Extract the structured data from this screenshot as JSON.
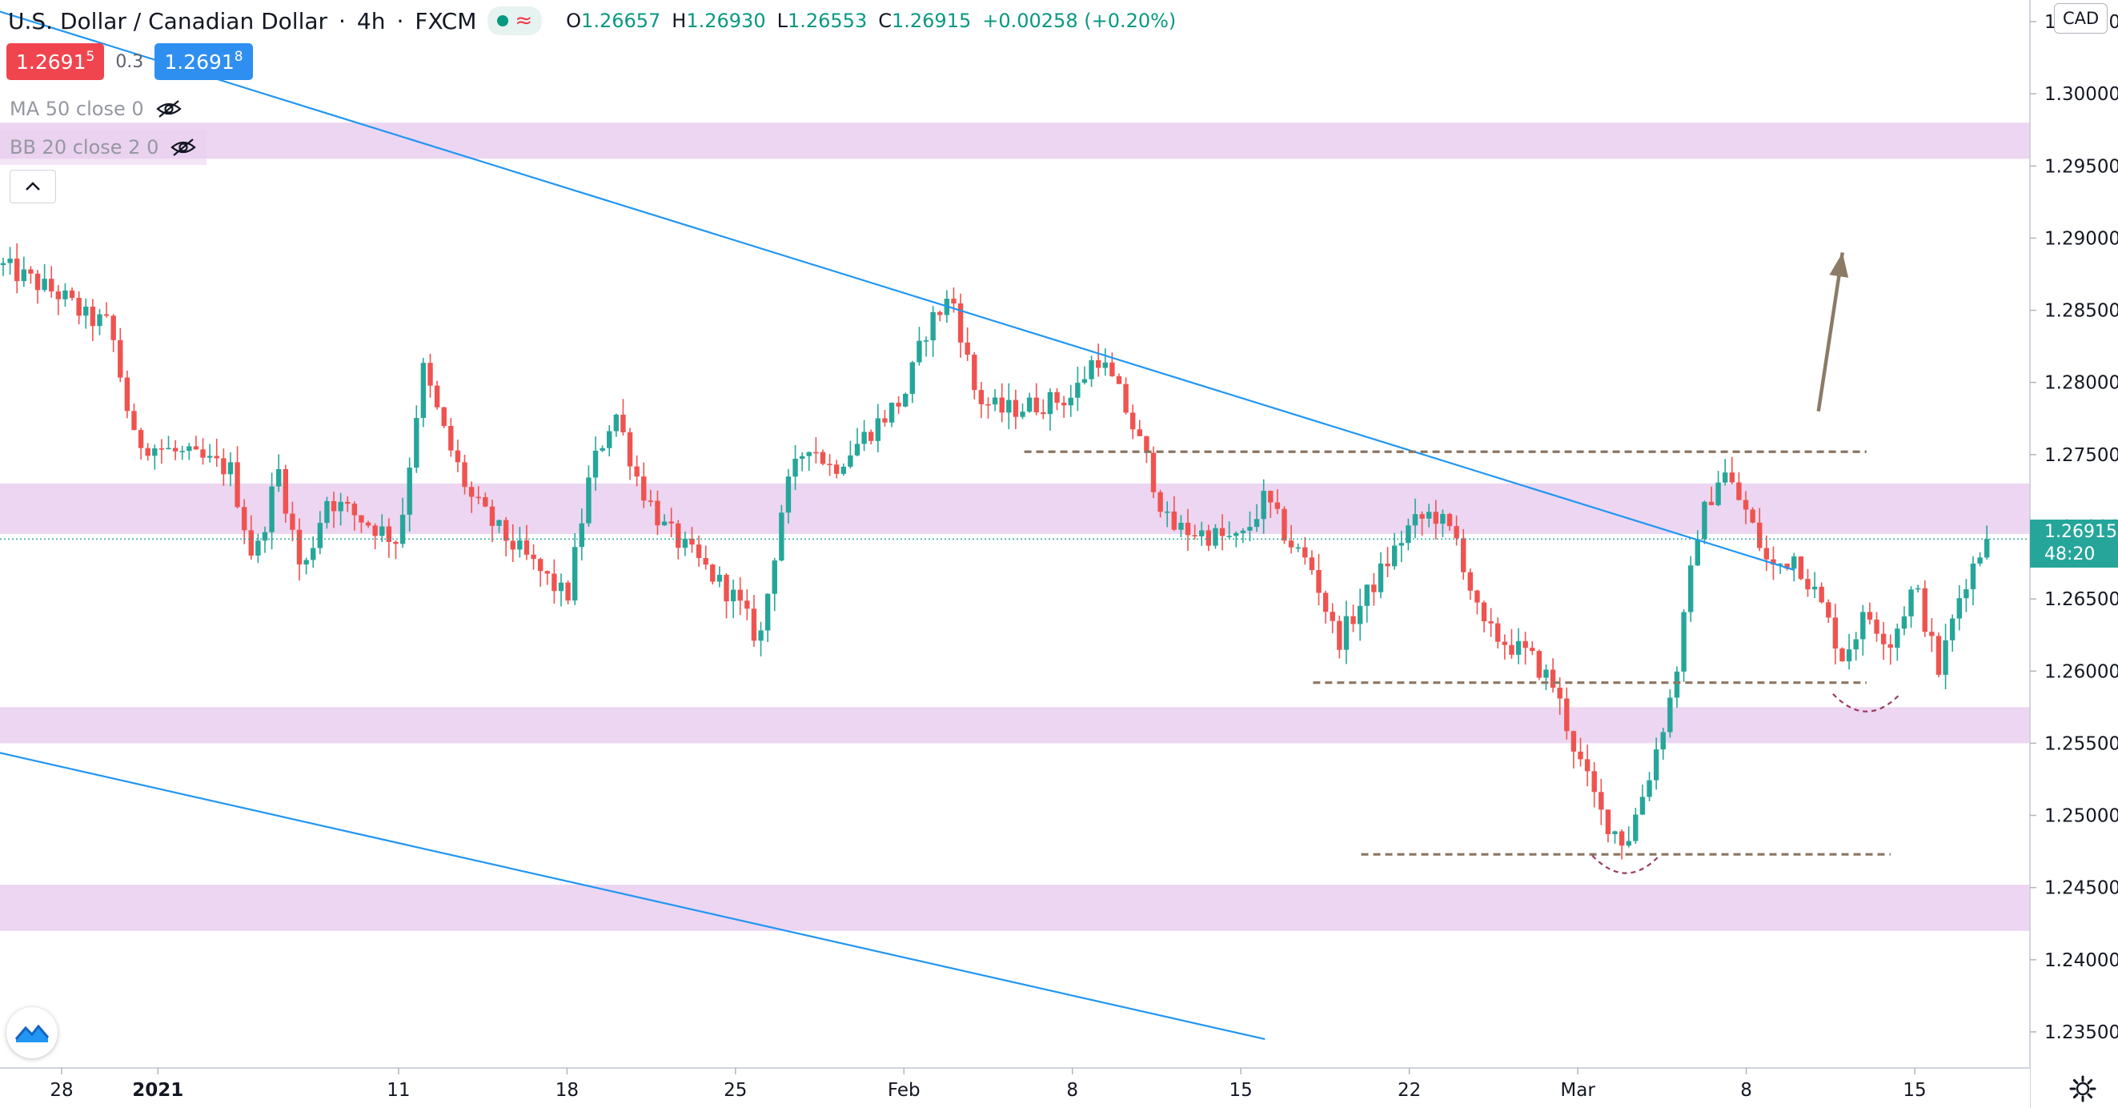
{
  "header": {
    "symbol_name": "U.S. Dollar / Canadian Dollar",
    "interval": "4h",
    "exchange": "FXCM",
    "wave_symbol": "≈",
    "ohlc": {
      "open_key": "O",
      "open": "1.26657",
      "high_key": "H",
      "high": "1.26930",
      "low_key": "L",
      "low": "1.26553",
      "close_key": "C",
      "close": "1.26915",
      "change": "+0.00258 (+0.20%)"
    }
  },
  "quote": {
    "sell_main": "1.2691",
    "sell_small": "5",
    "spread": "0.3",
    "buy_main": "1.2691",
    "buy_small": "8"
  },
  "indicators": [
    {
      "label": "MA 50 close 0"
    },
    {
      "label": "BB 20 close 2 0"
    }
  ],
  "currency_badge": "CAD",
  "last_price": {
    "value": "1.26915",
    "countdown": "48:20"
  },
  "icons": {
    "status": "market-open-dot-icon",
    "eye": "eye-crossed-icon",
    "collapse": "chevron-up-icon",
    "logo": "tradingview-logo-icon",
    "settings": "gear-icon"
  },
  "colors": {
    "up": "#26a69a",
    "down": "#ef5350",
    "trendline": "#2196f3",
    "level": "#8b7560",
    "zone": "#e6c8ec",
    "arrow": "#8b7b66"
  },
  "chart_data": {
    "type": "candlestick",
    "timeframe": "4h",
    "y_range": [
      1.2325,
      1.3065
    ],
    "y_ticks": [
      "1.30500",
      "1.30000",
      "1.29500",
      "1.29000",
      "1.28500",
      "1.28000",
      "1.27500",
      "1.27000",
      "1.26500",
      "1.26000",
      "1.25500",
      "1.25000",
      "1.24500",
      "1.24000",
      "1.23500"
    ],
    "x_ticks": [
      {
        "label": "28",
        "t": "2020-12-28"
      },
      {
        "label": "2021",
        "t": "2021-01-01"
      },
      {
        "label": "11",
        "t": "2021-01-11"
      },
      {
        "label": "18",
        "t": "2021-01-18"
      },
      {
        "label": "25",
        "t": "2021-01-25"
      },
      {
        "label": "Feb",
        "t": "2021-02-01"
      },
      {
        "label": "8",
        "t": "2021-02-08"
      },
      {
        "label": "15",
        "t": "2021-02-15"
      },
      {
        "label": "22",
        "t": "2021-02-22"
      },
      {
        "label": "Mar",
        "t": "2021-03-01"
      },
      {
        "label": "8",
        "t": "2021-03-08"
      },
      {
        "label": "15",
        "t": "2021-03-15"
      }
    ],
    "close_path": [
      [
        "2020-12-25",
        1.2885
      ],
      [
        "2020-12-28",
        1.286
      ],
      [
        "2020-12-29",
        1.2845
      ],
      [
        "2020-12-30",
        1.284
      ],
      [
        "2020-12-31",
        1.276
      ],
      [
        "2021-01-04",
        1.274
      ],
      [
        "2021-01-05",
        1.2675
      ],
      [
        "2021-01-06",
        1.274
      ],
      [
        "2021-01-07",
        1.2665
      ],
      [
        "2021-01-08",
        1.272
      ],
      [
        "2021-01-11",
        1.269
      ],
      [
        "2021-01-12",
        1.281
      ],
      [
        "2021-01-13",
        1.276
      ],
      [
        "2021-01-14",
        1.272
      ],
      [
        "2021-01-15",
        1.27
      ],
      [
        "2021-01-18",
        1.265
      ],
      [
        "2021-01-19",
        1.274
      ],
      [
        "2021-01-20",
        1.278
      ],
      [
        "2021-01-21",
        1.273
      ],
      [
        "2021-01-22",
        1.27
      ],
      [
        "2021-01-25",
        1.265
      ],
      [
        "2021-01-26",
        1.262
      ],
      [
        "2021-01-27",
        1.272
      ],
      [
        "2021-01-28",
        1.276
      ],
      [
        "2021-01-29",
        1.274
      ],
      [
        "2021-02-01",
        1.279
      ],
      [
        "2021-02-02",
        1.284
      ],
      [
        "2021-02-03",
        1.286
      ],
      [
        "2021-02-04",
        1.279
      ],
      [
        "2021-02-05",
        1.278
      ],
      [
        "2021-02-08",
        1.279
      ],
      [
        "2021-02-09",
        1.282
      ],
      [
        "2021-02-10",
        1.279
      ],
      [
        "2021-02-11",
        1.275
      ],
      [
        "2021-02-12",
        1.27
      ],
      [
        "2021-02-15",
        1.269
      ],
      [
        "2021-02-16",
        1.272
      ],
      [
        "2021-02-17",
        1.269
      ],
      [
        "2021-02-18",
        1.267
      ],
      [
        "2021-02-19",
        1.262
      ],
      [
        "2021-02-22",
        1.27
      ],
      [
        "2021-02-23",
        1.271
      ],
      [
        "2021-02-24",
        1.269
      ],
      [
        "2021-02-25",
        1.263
      ],
      [
        "2021-02-26",
        1.262
      ],
      [
        "2021-02-27",
        1.261
      ],
      [
        "2021-02-28",
        1.259
      ],
      [
        "2021-03-01",
        1.254
      ],
      [
        "2021-03-02",
        1.25
      ],
      [
        "2021-03-03",
        1.248
      ],
      [
        "2021-03-04",
        1.253
      ],
      [
        "2021-03-05",
        1.259
      ],
      [
        "2021-03-06",
        1.27
      ],
      [
        "2021-03-07",
        1.274
      ],
      [
        "2021-03-08",
        1.271
      ],
      [
        "2021-03-09",
        1.267
      ],
      [
        "2021-03-10",
        1.268
      ],
      [
        "2021-03-11",
        1.265
      ],
      [
        "2021-03-12",
        1.261
      ],
      [
        "2021-03-13",
        1.264
      ],
      [
        "2021-03-14",
        1.262
      ],
      [
        "2021-03-15",
        1.266
      ],
      [
        "2021-03-16",
        1.26
      ],
      [
        "2021-03-17",
        1.266
      ],
      [
        "2021-03-18",
        1.2691
      ]
    ],
    "zones": [
      {
        "from": 1.2955,
        "to": 1.298
      },
      {
        "from": 1.2695,
        "to": 1.273
      },
      {
        "from": 1.255,
        "to": 1.2575
      },
      {
        "from": 1.242,
        "to": 1.2452
      }
    ],
    "horizontal_levels": [
      {
        "price": 1.2752,
        "from": "2021-02-06",
        "to": "2021-03-13"
      },
      {
        "price": 1.2592,
        "from": "2021-02-18",
        "to": "2021-03-13"
      },
      {
        "price": 1.2473,
        "from": "2021-02-20",
        "to": "2021-03-14"
      }
    ],
    "trendlines": [
      {
        "from": [
          "2020-12-21",
          1.308
        ],
        "to": [
          "2021-03-10",
          1.267
        ]
      },
      {
        "from": [
          "2020-12-25",
          1.2545
        ],
        "to": [
          "2021-02-16",
          1.2345
        ]
      }
    ],
    "arcs": [
      {
        "center": [
          "2021-03-03",
          1.246
        ],
        "note": "double-bottom curve"
      },
      {
        "center": [
          "2021-03-13",
          1.2572
        ],
        "note": "bottom curve"
      }
    ],
    "arrow": {
      "from": [
        "2021-03-11",
        1.278
      ],
      "to": [
        "2021-03-12",
        1.289
      ]
    },
    "last_price": 1.26915
  }
}
